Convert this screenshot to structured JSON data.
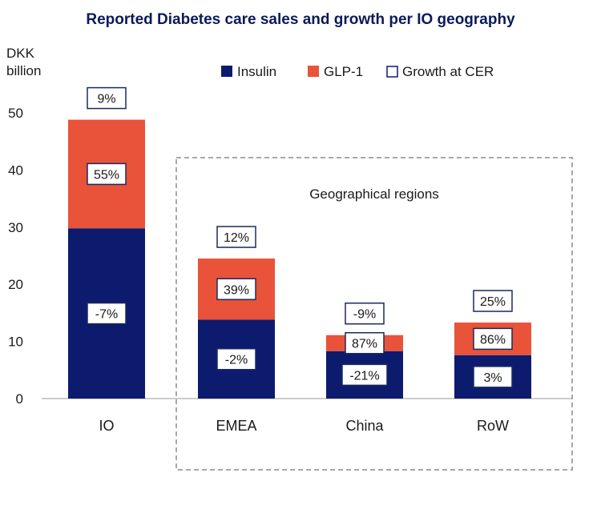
{
  "chart_data": {
    "type": "bar",
    "stacked": true,
    "title": "Reported Diabetes care sales and growth per IO geography",
    "ylabel_lines": [
      "DKK",
      "billion"
    ],
    "ylim": [
      0,
      50
    ],
    "yticks": [
      0,
      10,
      20,
      30,
      40,
      50
    ],
    "categories": [
      "IO",
      "EMEA",
      "China",
      "RoW"
    ],
    "series": [
      {
        "name": "Insulin",
        "color": "#0d1b6e",
        "values": [
          29.8,
          13.8,
          8.3,
          7.6
        ],
        "growth_labels": [
          "-7%",
          "-2%",
          "-21%",
          "3%"
        ]
      },
      {
        "name": "GLP-1",
        "color": "#e8533a",
        "values": [
          19.0,
          10.7,
          2.8,
          5.7
        ],
        "growth_labels": [
          "55%",
          "39%",
          "87%",
          "86%"
        ]
      }
    ],
    "total_growth_labels": [
      "9%",
      "12%",
      "-9%",
      "25%"
    ],
    "legend": {
      "position": "top-right",
      "items": [
        {
          "label": "Insulin",
          "style": "filled",
          "color": "#0d1b6e"
        },
        {
          "label": "GLP-1",
          "style": "filled",
          "color": "#e8533a"
        },
        {
          "label": "Growth at CER",
          "style": "outline",
          "color": "#0d1b6e"
        }
      ]
    },
    "annotation": {
      "text": "Geographical regions",
      "categories": [
        "EMEA",
        "China",
        "RoW"
      ]
    }
  }
}
